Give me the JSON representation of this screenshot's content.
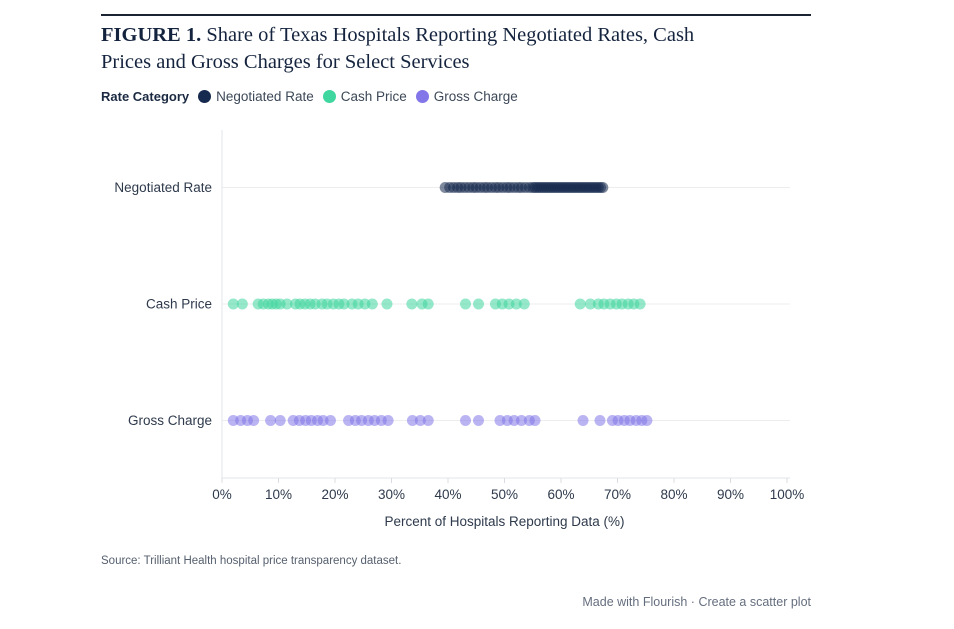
{
  "header": {
    "figure_label": "FIGURE 1.",
    "title_line1": "Share of Texas Hospitals Reporting Negotiated Rates, Cash",
    "title_line2": "Prices and Gross Charges for Select Services"
  },
  "legend": {
    "title": "Rate Category",
    "items": [
      {
        "label": "Negotiated Rate",
        "color": "#16294e"
      },
      {
        "label": "Cash Price",
        "color": "#3fd69f"
      },
      {
        "label": "Gross Charge",
        "color": "#8276e8"
      }
    ]
  },
  "chart_data": {
    "type": "scatter",
    "orientation": "horizontal-strip",
    "title": "Share of Texas Hospitals Reporting Negotiated Rates, Cash Prices and Gross Charges for Select Services",
    "xlabel": "Percent of Hospitals Reporting Data (%)",
    "xlim": [
      0,
      100
    ],
    "x_ticks": [
      "0%",
      "10%",
      "20%",
      "30%",
      "40%",
      "50%",
      "60%",
      "70%",
      "80%",
      "90%",
      "100%"
    ],
    "categories": [
      "Negotiated Rate",
      "Cash Price",
      "Gross Charge"
    ],
    "grid": "horizontal-row-lines",
    "legend_position": "top",
    "marker_opacity": 0.55,
    "series": [
      {
        "name": "Negotiated Rate",
        "color": "#16294e",
        "values": [
          39.5,
          40.3,
          41.0,
          41.7,
          42.3,
          43.0,
          43.7,
          44.4,
          45.0,
          45.7,
          46.4,
          47.0,
          47.7,
          48.4,
          49.0,
          49.7,
          50.4,
          51.0,
          51.7,
          52.4,
          53.0,
          53.7,
          54.4,
          55.0,
          55.4,
          55.8,
          56.2,
          56.6,
          57.0,
          57.4,
          57.8,
          58.2,
          58.6,
          59.0,
          59.4,
          59.8,
          60.2,
          60.6,
          61.0,
          61.4,
          61.8,
          62.2,
          62.6,
          63.0,
          63.4,
          63.8,
          64.2,
          64.6,
          65.0,
          65.4,
          65.8,
          66.2,
          66.6,
          67.0,
          67.4
        ]
      },
      {
        "name": "Cash Price",
        "color": "#3fd69f",
        "values": [
          2.0,
          3.6,
          6.4,
          7.3,
          8.2,
          8.9,
          9.6,
          10.3,
          11.5,
          13.0,
          13.8,
          14.7,
          15.6,
          16.5,
          17.7,
          18.6,
          19.7,
          20.7,
          21.6,
          23.0,
          24.1,
          25.3,
          26.6,
          29.2,
          33.6,
          35.4,
          36.5,
          43.1,
          45.4,
          48.4,
          49.6,
          50.8,
          52.1,
          53.5,
          63.4,
          65.2,
          66.6,
          67.6,
          68.7,
          69.8,
          70.8,
          71.9,
          72.9,
          74.0
        ]
      },
      {
        "name": "Gross Charge",
        "color": "#8276e8",
        "values": [
          2.0,
          3.3,
          4.5,
          5.6,
          8.6,
          10.3,
          12.6,
          13.7,
          14.8,
          15.8,
          16.9,
          17.9,
          19.2,
          22.4,
          23.6,
          24.7,
          25.9,
          27.0,
          28.2,
          29.4,
          33.7,
          35.1,
          36.5,
          43.1,
          45.4,
          49.2,
          50.5,
          51.7,
          53.0,
          54.4,
          55.4,
          63.9,
          66.9,
          69.1,
          70.1,
          71.2,
          72.2,
          73.3,
          74.3,
          75.2
        ]
      }
    ]
  },
  "source": "Source: Trilliant Health hospital price transparency dataset.",
  "footer": {
    "made_with": "Made with Flourish",
    "separator": "·",
    "cta": "Create a scatter plot"
  }
}
